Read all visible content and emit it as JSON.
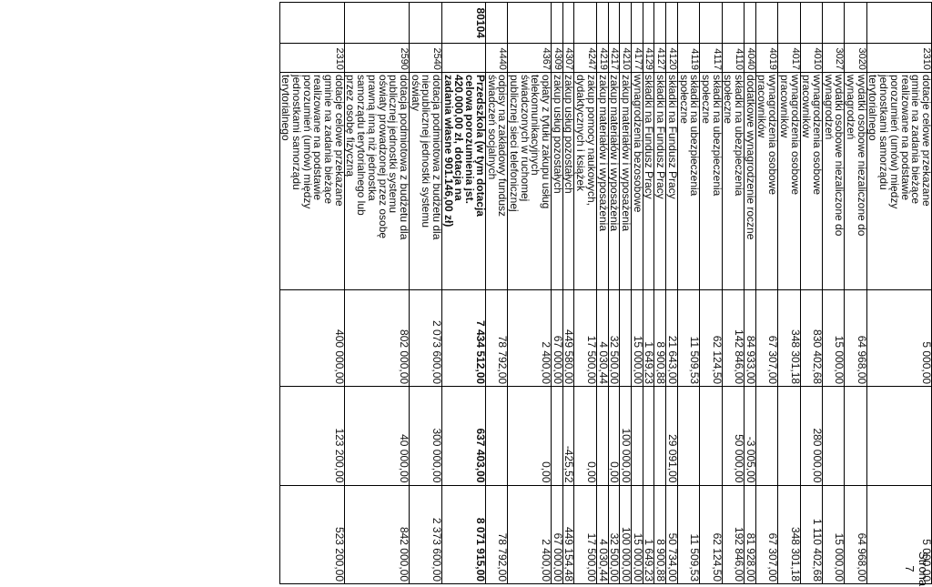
{
  "page": {
    "footer": "Strona 7"
  },
  "rows": [
    {
      "para": "2310",
      "lines": [
        "dotacje celowe przekazane",
        "gminie na zadania bieżące",
        "realizowane na podstawie",
        "porozumień (umów) między",
        "jednostkami samorządu",
        "terytorialnego"
      ],
      "v1": "5 000,00",
      "v2": "",
      "v3": "5 000,00"
    },
    {
      "para": "3020",
      "lines": [
        "wydatki osobowe niezaliczone do",
        "wynagrodzeń"
      ],
      "v1": "64 968,00",
      "v2": "",
      "v3": "64 968,00"
    },
    {
      "para": "3027",
      "lines": [
        "wydatki osobowe niezaliczone do",
        "wynagrodzeń"
      ],
      "v1": "15 000,00",
      "v2": "",
      "v3": "15 000,00"
    },
    {
      "para": "4010",
      "lines": [
        "wynagrodzenia osobowe",
        "pracowników"
      ],
      "v1": "830 402,68",
      "v2": "280 000,00",
      "v3": "1 110 402,68"
    },
    {
      "para": "4017",
      "lines": [
        "wynagrodzenia osobowe",
        "pracowników"
      ],
      "v1": "348 301,18",
      "v2": "",
      "v3": "348 301,18"
    },
    {
      "para": "4019",
      "lines": [
        "wynagrodzenia osobowe",
        "pracowników"
      ],
      "v1": "67 307,00",
      "v2": "",
      "v3": "67 307,00"
    },
    {
      "para": "4040",
      "lines": [
        "dodatkowe wynagrodzenie roczne"
      ],
      "v1": "84 933,00",
      "v2": "-3 005,00",
      "v3": "81 928,00"
    },
    {
      "para": "4110",
      "lines": [
        "składki na ubezpieczenia",
        "społeczne"
      ],
      "v1": "142 846,00",
      "v2": "50 000,00",
      "v3": "192 846,00"
    },
    {
      "para": "4117",
      "lines": [
        "składki na ubezpieczenia",
        "społeczne"
      ],
      "v1": "62 124,50",
      "v2": "",
      "v3": "62 124,50"
    },
    {
      "para": "4119",
      "lines": [
        "składki na ubezpieczenia",
        "społeczne"
      ],
      "v1": "11 509,53",
      "v2": "",
      "v3": "11 509,53"
    },
    {
      "para": "4120",
      "lines": [
        "składki na Fundusz Pracy"
      ],
      "v1": "21 643,00",
      "v2": "29 091,00",
      "v3": "50 734,00"
    },
    {
      "para": "4127",
      "lines": [
        "składki na Fundusz Pracy"
      ],
      "v1": "8 900,88",
      "v2": "",
      "v3": "8 900,88"
    },
    {
      "para": "4129",
      "lines": [
        "składki na Fundusz Pracy"
      ],
      "v1": "1 649,23",
      "v2": "",
      "v3": "1 649,23"
    },
    {
      "para": "4177",
      "lines": [
        "wynagrodzenia bezosobowe"
      ],
      "v1": "15 000,00",
      "v2": "",
      "v3": "15 000,00"
    },
    {
      "para": "4210",
      "lines": [
        "zakup materiałów i wyposażenia"
      ],
      "v1": "",
      "v2": "100 000,00",
      "v3": "100 000,00"
    },
    {
      "para": "4217",
      "lines": [
        "zakup materiałów i wyposażenia"
      ],
      "v1": "32 500,00",
      "v2": "0,00",
      "v3": "32 500,00"
    },
    {
      "para": "4219",
      "lines": [
        "zakup materiałów i wyposażenia"
      ],
      "v1": "4 030,44",
      "v2": "",
      "v3": "4 030,44"
    },
    {
      "para": "4247",
      "lines": [
        "zakup pomocy naukowych,",
        "dydaktycznych i książek"
      ],
      "v1": "17 500,00",
      "v2": "0,00",
      "v3": "17 500,00"
    },
    {
      "para": "4307",
      "lines": [
        "zakup usług pozostałych"
      ],
      "v1": "449 580,00",
      "v2": "-425,52",
      "v3": "449 154,48"
    },
    {
      "para": "4309",
      "lines": [
        "zakup usług pozostałych"
      ],
      "v1": "67 000,00",
      "v2": "",
      "v3": "67 000,00"
    },
    {
      "para": "4367",
      "lines": [
        "opłaty z tytułu zakupu usług",
        "telekomunikacyjnych",
        "świadczonych w ruchomej",
        "publicznej sieci telefonicznej"
      ],
      "v1": "2 400,00",
      "v2": "0,00",
      "v3": "2 400,00"
    },
    {
      "para": "4440",
      "lines": [
        "odpisy na zakładowy fundusz",
        "świadczeń socjalnych"
      ],
      "v1": "78 792,00",
      "v2": "",
      "v3": "78 792,00"
    }
  ],
  "section_row": {
    "code": "80104",
    "lines": [
      "Przedszkola (w tym dotacja",
      "celowa porozumienia jst.",
      "420.000,00 zł, dotacja na",
      "zadania własne 901.146,00 zł)"
    ],
    "v1": "7 434 512,00",
    "v2": "637 403,00",
    "v3": "8 071 915,00"
  },
  "rows2": [
    {
      "para": "2540",
      "lines": [
        "dotacja podmiotowa z budżetu dla",
        "niepublicznej jednostki systemu",
        "oświaty"
      ],
      "v1": "2 073 600,00",
      "v2": "300 000,00",
      "v3": "2 373 600,00"
    },
    {
      "para": "2590",
      "lines": [
        "dotacja podmiotowa z budżetu dla",
        "publicznej jednostki systemu",
        "oświaty prowadzonej przez osobę",
        "prawną inną niż jednostka",
        "samorządu terytorialnego lub",
        "przez osobę fizyczną"
      ],
      "v1": "802 000,00",
      "v2": "40 000,00",
      "v3": "842 000,00"
    },
    {
      "para": "2310",
      "lines": [
        "dotacje celowe przekazane",
        "gminie na zadania bieżące",
        "realizowane na podstawie",
        "porozumień (umów) między",
        "jednostkami samorządu",
        "terytorialnego"
      ],
      "v1": "400 000,00",
      "v2": "123 200,00",
      "v3": "523 200,00"
    }
  ]
}
